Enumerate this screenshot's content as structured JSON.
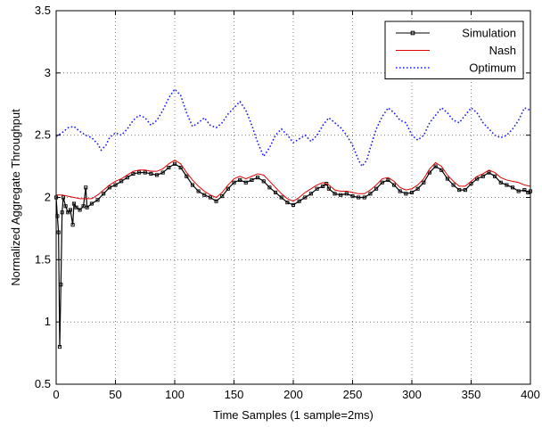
{
  "chart_data": {
    "type": "line",
    "title": "",
    "xlabel": "Time Samples (1 sample=2ms)",
    "ylabel": "Normalized Aggregate Throughput",
    "xlim": [
      0,
      400
    ],
    "ylim": [
      0.5,
      3.5
    ],
    "xticks": [
      0,
      50,
      100,
      150,
      200,
      250,
      300,
      350,
      400
    ],
    "yticks": [
      0.5,
      1,
      1.5,
      2,
      2.5,
      3,
      3.5
    ],
    "xtick_labels": [
      "0",
      "50",
      "100",
      "150",
      "200",
      "250",
      "300",
      "350",
      "400"
    ],
    "ytick_labels": [
      "0.5",
      "1",
      "1.5",
      "2",
      "2.5",
      "3",
      "3.5"
    ],
    "grid": true,
    "legend_position": "top-right",
    "series": [
      {
        "name": "Simulation",
        "color": "#000000",
        "style": "solid-square-markers",
        "points": [
          [
            0,
            2.0
          ],
          [
            1,
            1.85
          ],
          [
            2,
            1.72
          ],
          [
            3,
            0.8
          ],
          [
            4,
            1.3
          ],
          [
            5,
            1.88
          ],
          [
            6,
            2.0
          ],
          [
            8,
            1.93
          ],
          [
            10,
            1.88
          ],
          [
            12,
            1.9
          ],
          [
            14,
            1.78
          ],
          [
            15,
            1.95
          ],
          [
            17,
            1.92
          ],
          [
            20,
            1.9
          ],
          [
            23,
            1.93
          ],
          [
            25,
            2.08
          ],
          [
            26,
            1.92
          ],
          [
            30,
            1.95
          ],
          [
            35,
            1.98
          ],
          [
            40,
            2.03
          ],
          [
            45,
            2.08
          ],
          [
            50,
            2.1
          ],
          [
            55,
            2.13
          ],
          [
            60,
            2.16
          ],
          [
            65,
            2.19
          ],
          [
            70,
            2.2
          ],
          [
            75,
            2.2
          ],
          [
            80,
            2.19
          ],
          [
            85,
            2.18
          ],
          [
            90,
            2.2
          ],
          [
            95,
            2.24
          ],
          [
            100,
            2.27
          ],
          [
            105,
            2.24
          ],
          [
            110,
            2.17
          ],
          [
            115,
            2.1
          ],
          [
            120,
            2.05
          ],
          [
            125,
            2.02
          ],
          [
            130,
            2.0
          ],
          [
            135,
            1.97
          ],
          [
            140,
            2.01
          ],
          [
            145,
            2.07
          ],
          [
            150,
            2.12
          ],
          [
            155,
            2.14
          ],
          [
            160,
            2.12
          ],
          [
            165,
            2.14
          ],
          [
            170,
            2.16
          ],
          [
            175,
            2.13
          ],
          [
            180,
            2.08
          ],
          [
            185,
            2.04
          ],
          [
            190,
            2.0
          ],
          [
            195,
            1.96
          ],
          [
            200,
            1.94
          ],
          [
            205,
            1.97
          ],
          [
            210,
            2.0
          ],
          [
            215,
            2.03
          ],
          [
            220,
            2.07
          ],
          [
            225,
            2.09
          ],
          [
            228,
            2.11
          ],
          [
            230,
            2.07
          ],
          [
            235,
            2.03
          ],
          [
            240,
            2.02
          ],
          [
            245,
            2.03
          ],
          [
            250,
            2.01
          ],
          [
            255,
            2.0
          ],
          [
            260,
            2.0
          ],
          [
            265,
            2.03
          ],
          [
            270,
            2.07
          ],
          [
            275,
            2.12
          ],
          [
            280,
            2.14
          ],
          [
            285,
            2.1
          ],
          [
            290,
            2.05
          ],
          [
            295,
            2.03
          ],
          [
            300,
            2.04
          ],
          [
            305,
            2.07
          ],
          [
            310,
            2.12
          ],
          [
            315,
            2.2
          ],
          [
            320,
            2.25
          ],
          [
            325,
            2.22
          ],
          [
            330,
            2.15
          ],
          [
            335,
            2.1
          ],
          [
            340,
            2.06
          ],
          [
            345,
            2.06
          ],
          [
            350,
            2.11
          ],
          [
            355,
            2.15
          ],
          [
            360,
            2.17
          ],
          [
            365,
            2.2
          ],
          [
            370,
            2.17
          ],
          [
            375,
            2.12
          ],
          [
            380,
            2.1
          ],
          [
            385,
            2.08
          ],
          [
            390,
            2.05
          ],
          [
            395,
            2.06
          ],
          [
            398,
            2.04
          ],
          [
            400,
            2.05
          ]
        ]
      },
      {
        "name": "Nash",
        "color": "#e00000",
        "style": "solid",
        "points": [
          [
            0,
            2.02
          ],
          [
            5,
            2.02
          ],
          [
            10,
            2.01
          ],
          [
            15,
            2.0
          ],
          [
            20,
            1.99
          ],
          [
            25,
            1.99
          ],
          [
            30,
            1.99
          ],
          [
            35,
            2.02
          ],
          [
            40,
            2.06
          ],
          [
            45,
            2.1
          ],
          [
            50,
            2.13
          ],
          [
            55,
            2.15
          ],
          [
            60,
            2.18
          ],
          [
            65,
            2.21
          ],
          [
            70,
            2.22
          ],
          [
            75,
            2.22
          ],
          [
            80,
            2.21
          ],
          [
            85,
            2.21
          ],
          [
            90,
            2.23
          ],
          [
            95,
            2.27
          ],
          [
            100,
            2.3
          ],
          [
            105,
            2.27
          ],
          [
            110,
            2.2
          ],
          [
            115,
            2.14
          ],
          [
            120,
            2.09
          ],
          [
            125,
            2.05
          ],
          [
            130,
            2.02
          ],
          [
            135,
            2.0
          ],
          [
            140,
            2.04
          ],
          [
            145,
            2.1
          ],
          [
            150,
            2.15
          ],
          [
            155,
            2.17
          ],
          [
            160,
            2.15
          ],
          [
            165,
            2.17
          ],
          [
            170,
            2.19
          ],
          [
            175,
            2.18
          ],
          [
            180,
            2.13
          ],
          [
            185,
            2.08
          ],
          [
            190,
            2.03
          ],
          [
            195,
            1.99
          ],
          [
            200,
            1.97
          ],
          [
            205,
            2.0
          ],
          [
            210,
            2.04
          ],
          [
            215,
            2.07
          ],
          [
            220,
            2.1
          ],
          [
            225,
            2.12
          ],
          [
            230,
            2.1
          ],
          [
            235,
            2.06
          ],
          [
            240,
            2.05
          ],
          [
            245,
            2.05
          ],
          [
            250,
            2.04
          ],
          [
            255,
            2.03
          ],
          [
            260,
            2.03
          ],
          [
            265,
            2.06
          ],
          [
            270,
            2.1
          ],
          [
            275,
            2.15
          ],
          [
            280,
            2.16
          ],
          [
            285,
            2.13
          ],
          [
            290,
            2.08
          ],
          [
            295,
            2.06
          ],
          [
            300,
            2.07
          ],
          [
            305,
            2.1
          ],
          [
            310,
            2.15
          ],
          [
            315,
            2.23
          ],
          [
            320,
            2.28
          ],
          [
            325,
            2.25
          ],
          [
            330,
            2.18
          ],
          [
            335,
            2.13
          ],
          [
            340,
            2.09
          ],
          [
            345,
            2.09
          ],
          [
            350,
            2.13
          ],
          [
            355,
            2.17
          ],
          [
            360,
            2.19
          ],
          [
            365,
            2.22
          ],
          [
            370,
            2.2
          ],
          [
            375,
            2.16
          ],
          [
            380,
            2.14
          ],
          [
            385,
            2.13
          ],
          [
            390,
            2.12
          ],
          [
            395,
            2.1
          ],
          [
            400,
            2.09
          ]
        ]
      },
      {
        "name": "Optimum",
        "color": "#1a1aff",
        "style": "dotted",
        "points": [
          [
            0,
            2.49
          ],
          [
            5,
            2.52
          ],
          [
            10,
            2.56
          ],
          [
            15,
            2.57
          ],
          [
            20,
            2.53
          ],
          [
            25,
            2.5
          ],
          [
            30,
            2.48
          ],
          [
            35,
            2.43
          ],
          [
            38,
            2.38
          ],
          [
            42,
            2.42
          ],
          [
            45,
            2.48
          ],
          [
            50,
            2.52
          ],
          [
            55,
            2.5
          ],
          [
            60,
            2.55
          ],
          [
            65,
            2.62
          ],
          [
            70,
            2.66
          ],
          [
            75,
            2.64
          ],
          [
            80,
            2.58
          ],
          [
            85,
            2.62
          ],
          [
            90,
            2.7
          ],
          [
            95,
            2.8
          ],
          [
            100,
            2.87
          ],
          [
            105,
            2.82
          ],
          [
            110,
            2.68
          ],
          [
            115,
            2.57
          ],
          [
            120,
            2.6
          ],
          [
            125,
            2.64
          ],
          [
            130,
            2.58
          ],
          [
            135,
            2.56
          ],
          [
            140,
            2.6
          ],
          [
            145,
            2.67
          ],
          [
            150,
            2.72
          ],
          [
            155,
            2.77
          ],
          [
            160,
            2.7
          ],
          [
            165,
            2.58
          ],
          [
            170,
            2.44
          ],
          [
            175,
            2.33
          ],
          [
            180,
            2.4
          ],
          [
            185,
            2.5
          ],
          [
            190,
            2.55
          ],
          [
            195,
            2.5
          ],
          [
            200,
            2.44
          ],
          [
            205,
            2.47
          ],
          [
            210,
            2.5
          ],
          [
            215,
            2.45
          ],
          [
            220,
            2.5
          ],
          [
            225,
            2.58
          ],
          [
            230,
            2.64
          ],
          [
            235,
            2.6
          ],
          [
            240,
            2.56
          ],
          [
            245,
            2.5
          ],
          [
            250,
            2.42
          ],
          [
            255,
            2.3
          ],
          [
            258,
            2.25
          ],
          [
            262,
            2.3
          ],
          [
            265,
            2.4
          ],
          [
            270,
            2.55
          ],
          [
            275,
            2.65
          ],
          [
            280,
            2.72
          ],
          [
            285,
            2.68
          ],
          [
            290,
            2.62
          ],
          [
            295,
            2.6
          ],
          [
            300,
            2.5
          ],
          [
            305,
            2.46
          ],
          [
            310,
            2.5
          ],
          [
            315,
            2.6
          ],
          [
            320,
            2.66
          ],
          [
            325,
            2.72
          ],
          [
            330,
            2.68
          ],
          [
            335,
            2.62
          ],
          [
            340,
            2.6
          ],
          [
            345,
            2.66
          ],
          [
            350,
            2.72
          ],
          [
            355,
            2.68
          ],
          [
            360,
            2.6
          ],
          [
            365,
            2.55
          ],
          [
            370,
            2.5
          ],
          [
            375,
            2.48
          ],
          [
            380,
            2.5
          ],
          [
            385,
            2.55
          ],
          [
            390,
            2.62
          ],
          [
            395,
            2.72
          ],
          [
            400,
            2.7
          ]
        ]
      }
    ]
  }
}
